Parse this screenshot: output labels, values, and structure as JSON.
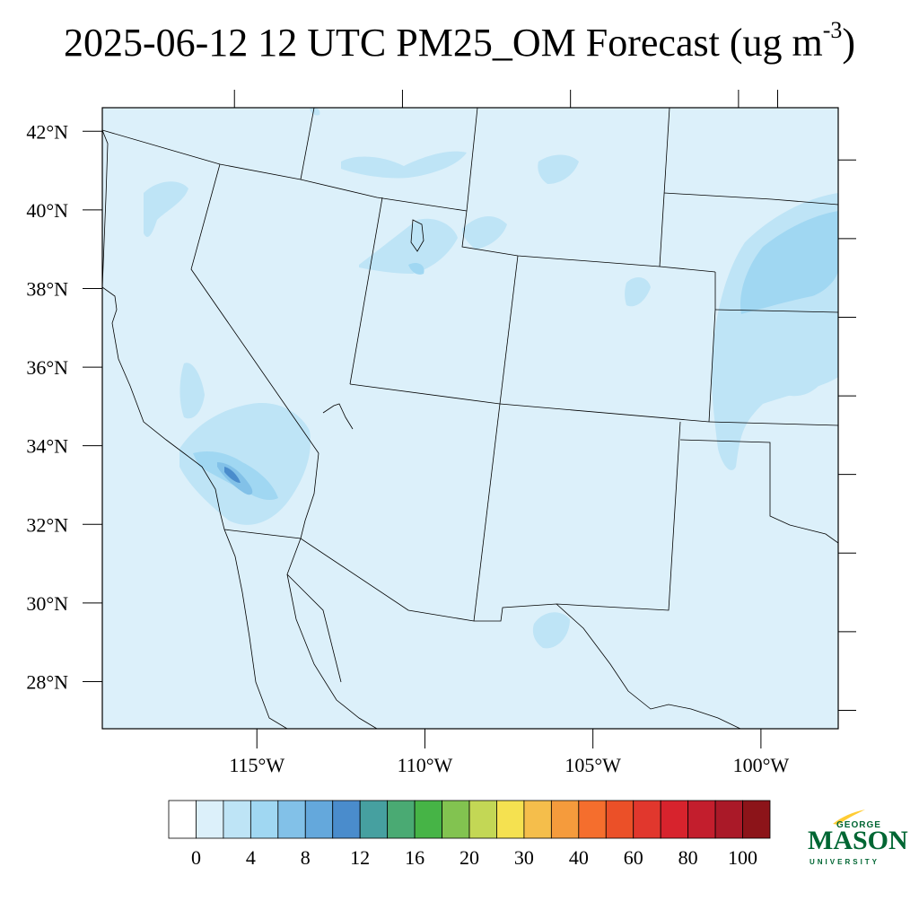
{
  "title": {
    "main": "2025-06-12 12 UTC PM25_OM Forecast (ug m",
    "superscript": "-3",
    "close": ")"
  },
  "map": {
    "extent": {
      "lon_min": -119.6,
      "lon_max": -97.7,
      "lat_min": 26.8,
      "lat_max": 42.6
    },
    "lat_ticks": [
      {
        "value": 42,
        "label": "42°N"
      },
      {
        "value": 40,
        "label": "40°N"
      },
      {
        "value": 38,
        "label": "38°N"
      },
      {
        "value": 36,
        "label": "36°N"
      },
      {
        "value": 34,
        "label": "34°N"
      },
      {
        "value": 32,
        "label": "32°N"
      },
      {
        "value": 30,
        "label": "30°N"
      },
      {
        "value": 28,
        "label": "28°N"
      }
    ],
    "lon_ticks": [
      {
        "value": -115,
        "label": "115°W"
      },
      {
        "value": -110,
        "label": "110°W"
      },
      {
        "value": -105,
        "label": "105°W"
      },
      {
        "value": -100,
        "label": "100°W"
      }
    ],
    "background_color": "#dcf0fa"
  },
  "colorbar": {
    "colors": [
      "#ffffff",
      "#dcf0fa",
      "#bee4f6",
      "#a0d7f2",
      "#82c1e8",
      "#64a8dc",
      "#4a8ccc",
      "#46a0a0",
      "#4aaa73",
      "#46b446",
      "#82c350",
      "#c3d755",
      "#f5e150",
      "#f5be4b",
      "#f59b3c",
      "#f56e2d",
      "#eb5028",
      "#e1372d",
      "#d7232d",
      "#c31e2d",
      "#aa1928",
      "#8c1419"
    ],
    "labels": [
      "0",
      "4",
      "8",
      "12",
      "16",
      "20",
      "30",
      "40",
      "60",
      "80",
      "100"
    ]
  },
  "logo": {
    "line1": "GEORGE",
    "line2": "MASON",
    "line3": "UNIVERSITY",
    "brand_color": "#006633",
    "swoosh_color": "#ffcc33"
  }
}
